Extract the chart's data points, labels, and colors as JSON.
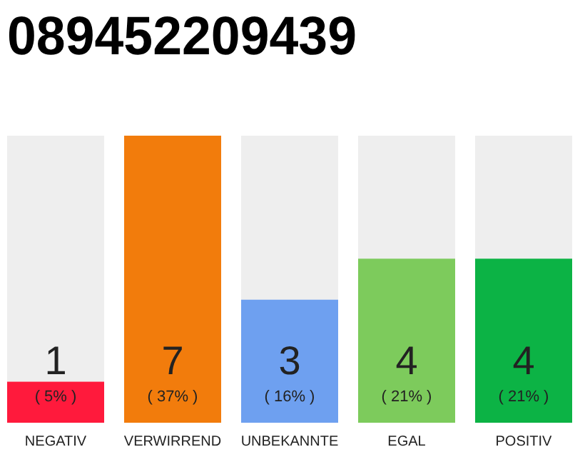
{
  "chart_data": {
    "type": "bar",
    "title": "089452209439",
    "categories": [
      "NEGATIV",
      "VERWIRREND",
      "UNBEKANNTE",
      "EGAL",
      "POSITIV"
    ],
    "values": [
      1,
      7,
      3,
      4,
      4
    ],
    "colors": [
      "#ff1a3c",
      "#f27c0c",
      "#6ea0f0",
      "#7dcb5c",
      "#0cb345"
    ],
    "data_labels": true,
    "annotations": [
      "( 5% )",
      "( 37% )",
      "( 16% )",
      "( 21% )",
      "( 21% )"
    ]
  }
}
